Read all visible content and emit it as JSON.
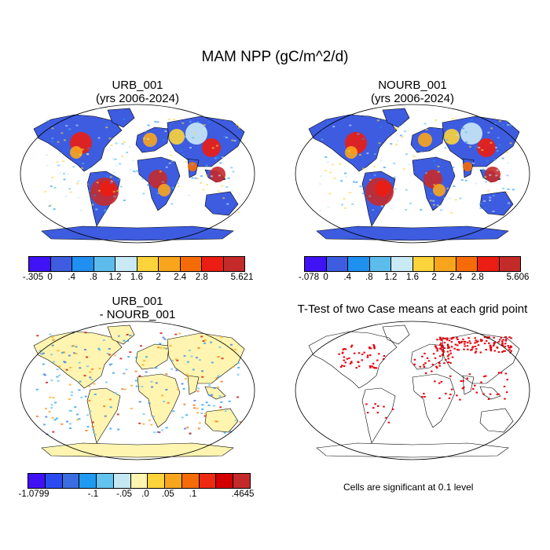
{
  "figure_title": "MAM NPP (gC/m^2/d)",
  "panels": [
    {
      "title_line1": "URB_001",
      "title_line2": "(yrs 2006-2024)"
    },
    {
      "title_line1": "NOURB_001",
      "title_line2": "(yrs 2006-2024)"
    },
    {
      "title_line1": "URB_001",
      "title_line2": "- NOURB_001"
    },
    {
      "title_line1": "T-Test of two Case means at each grid point",
      "title_line2": ""
    }
  ],
  "colorbars": [
    {
      "colors": [
        "#3f13f5",
        "#3d5ce0",
        "#1f8ff0",
        "#5cbcec",
        "#c8e9f5",
        "#fbd33a",
        "#f8a51e",
        "#f56b07",
        "#ec1d12",
        "#c52a2b"
      ],
      "labels": [
        "-.305",
        "0",
        ".4",
        ".8",
        "1.2",
        "1.6",
        "2",
        "2.4",
        "2.8",
        "5.621"
      ]
    },
    {
      "colors": [
        "#3f13f5",
        "#3d5ce0",
        "#1f8ff0",
        "#5cbcec",
        "#c8e9f5",
        "#fbd33a",
        "#f8a51e",
        "#f56b07",
        "#ec1d12",
        "#c52a2b"
      ],
      "labels": [
        "-.078",
        "0",
        ".4",
        ".8",
        "1.2",
        "1.6",
        "2",
        "2.4",
        "2.8",
        "5.606"
      ]
    },
    {
      "colors": [
        "#4011f4",
        "#2a4bf0",
        "#3b6de0",
        "#1f9af0",
        "#62c3ee",
        "#c4e8f2",
        "#fff5b0",
        "#fbd33a",
        "#f8a51e",
        "#f56b07",
        "#ee2a12",
        "#d30000",
        "#c52a2b"
      ],
      "labels": [
        "-1.0799",
        "-.1",
        "-.05",
        ".0",
        ".05",
        ".1",
        ".4645"
      ]
    }
  ],
  "ttest_note": "Cells are significant at 0.1 level",
  "chart_data": [
    {
      "type": "heatmap",
      "title": "URB_001 (yrs 2006-2024)",
      "variable": "MAM NPP (gC/m^2/d)",
      "colorbar_levels": [
        -0.305,
        0,
        0.4,
        0.8,
        1.2,
        1.6,
        2,
        2.4,
        2.8,
        5.621
      ],
      "projection": "Robinson"
    },
    {
      "type": "heatmap",
      "title": "NOURB_001 (yrs 2006-2024)",
      "variable": "MAM NPP (gC/m^2/d)",
      "colorbar_levels": [
        -0.078,
        0,
        0.4,
        0.8,
        1.2,
        1.6,
        2,
        2.4,
        2.8,
        5.606
      ],
      "projection": "Robinson"
    },
    {
      "type": "heatmap",
      "title": "URB_001 - NOURB_001",
      "colorbar_levels": [
        -1.0799,
        -0.1,
        -0.05,
        0.0,
        0.05,
        0.1,
        0.4645
      ],
      "projection": "Robinson"
    },
    {
      "type": "heatmap",
      "title": "T-Test of two Case means at each grid point",
      "annotation": "Cells are significant at 0.1 level",
      "projection": "Robinson"
    }
  ]
}
